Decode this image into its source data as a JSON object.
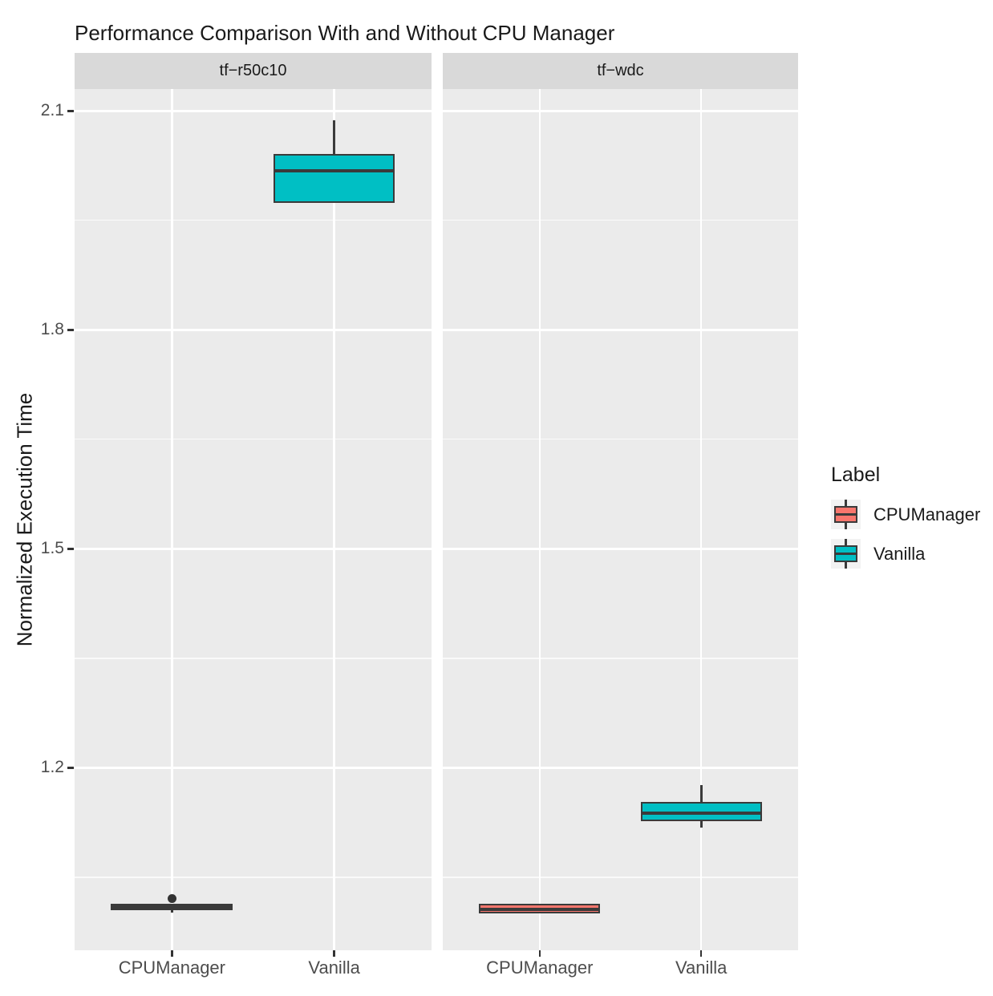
{
  "colors": {
    "panel_bg": "#EBEBEB",
    "strip_bg": "#D9D9D9",
    "grid": "#FFFFFF",
    "box_border": "#3A3A3A",
    "outlier": "#333333",
    "tick_text": "#4D4D4D",
    "legend_key_bg": "#F2F2F2",
    "cpumanager": "#F8766D",
    "vanilla": "#00BFC4"
  },
  "chart_data": {
    "type": "boxplot",
    "title": "Performance Comparison With and Without CPU Manager",
    "ylabel": "Normalized Execution Time",
    "xlabel": "",
    "ylim": [
      0.95,
      2.13
    ],
    "grid": "on",
    "legend_position": "right",
    "categories": [
      "CPUManager",
      "Vanilla"
    ],
    "y_ticks": [
      {
        "value": 2.1,
        "label": "2.1"
      },
      {
        "value": 1.8,
        "label": "1.8"
      },
      {
        "value": 1.5,
        "label": "1.5"
      },
      {
        "value": 1.2,
        "label": "1.2"
      }
    ],
    "y_minor_ticks": [
      1.95,
      1.65,
      1.35,
      1.05
    ],
    "legend": {
      "title": "Label",
      "entries": [
        {
          "label": "CPUManager",
          "color": "#F8766D"
        },
        {
          "label": "Vanilla",
          "color": "#00BFC4"
        }
      ]
    },
    "facets": [
      {
        "label": "tf−r50c10",
        "boxes": [
          {
            "category": "CPUManager",
            "series": "CPUManager",
            "color": "#F8766D",
            "whisker_low": 1.002,
            "q1": 1.005,
            "median": 1.009,
            "q3": 1.0135,
            "whisker_high": 1.0135,
            "outliers": [
              1.021
            ]
          },
          {
            "category": "Vanilla",
            "series": "Vanilla",
            "color": "#00BFC4",
            "whisker_low": 1.974,
            "q1": 1.974,
            "median": 2.018,
            "q3": 2.041,
            "whisker_high": 2.087,
            "outliers": []
          }
        ]
      },
      {
        "label": "tf−wdc",
        "boxes": [
          {
            "category": "CPUManager",
            "series": "CPUManager",
            "color": "#F8766D",
            "whisker_low": 1.001,
            "q1": 1.001,
            "median": 1.006,
            "q3": 1.0135,
            "whisker_high": 1.0135,
            "outliers": []
          },
          {
            "category": "Vanilla",
            "series": "Vanilla",
            "color": "#00BFC4",
            "whisker_low": 1.118,
            "q1": 1.127,
            "median": 1.138,
            "q3": 1.153,
            "whisker_high": 1.176,
            "outliers": []
          }
        ]
      }
    ]
  }
}
